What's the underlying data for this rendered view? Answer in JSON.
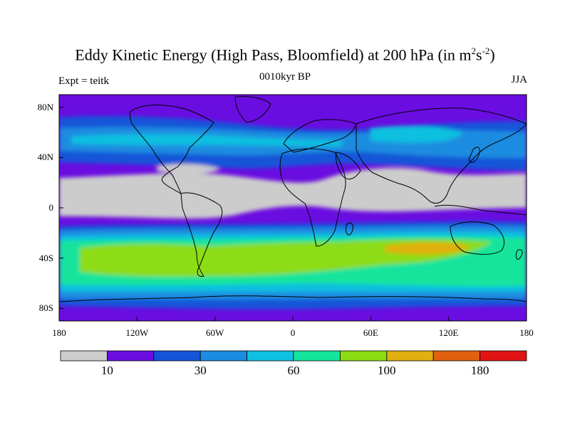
{
  "title": {
    "main": "Eddy Kinetic Energy (High Pass, Bloomfield) at 200 hPa (in m",
    "sup1": "2",
    "mid": "s",
    "sup2": "-2",
    "end": ")"
  },
  "subtitle_left": "Expt = teitk",
  "subtitle_center": "0010kyr BP",
  "subtitle_right": "JJA",
  "lat_ticks": [
    "80N",
    "40N",
    "0",
    "40S",
    "80S"
  ],
  "lon_ticks": [
    "180",
    "120W",
    "60W",
    "0",
    "60E",
    "120E",
    "180"
  ],
  "colorbar": {
    "colors": [
      "#cccccc",
      "#6a0de0",
      "#1454d8",
      "#1c8ce0",
      "#10c0e0",
      "#14e49c",
      "#8cdc14",
      "#e0b010",
      "#e06010",
      "#e01414"
    ],
    "labels": [
      "10",
      "30",
      "60",
      "100",
      "180"
    ]
  },
  "chart_data": {
    "type": "heatmap",
    "title": "Eddy Kinetic Energy (High Pass, Bloomfield) at 200 hPa (in m^2 s^-2)",
    "subtitle": "0010kyr BP",
    "experiment": "Expt = teitk",
    "season": "JJA",
    "x_range": [
      -180,
      180
    ],
    "y_range": [
      -90,
      90
    ],
    "colorbar_labels": [
      "10",
      "30",
      "60",
      "100",
      "180"
    ]
  }
}
